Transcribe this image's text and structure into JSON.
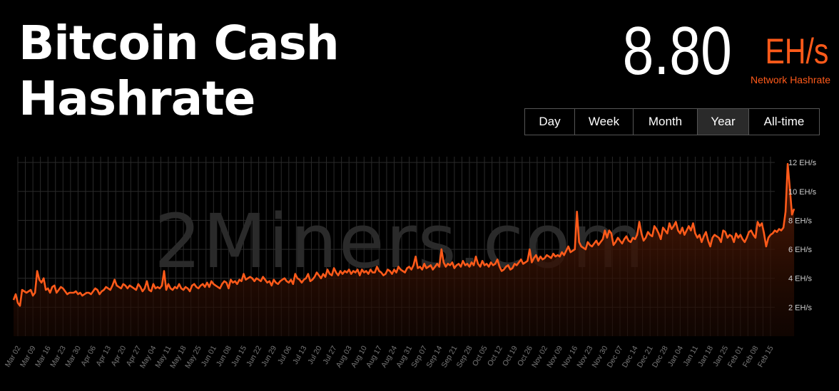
{
  "header": {
    "title_line1": "Bitcoin Cash",
    "title_line2": "Hashrate"
  },
  "stat": {
    "value": "8.80",
    "unit": "EH/s",
    "caption": "Network Hashrate"
  },
  "ranges": [
    {
      "label": "Day",
      "active": false
    },
    {
      "label": "Week",
      "active": false
    },
    {
      "label": "Month",
      "active": false
    },
    {
      "label": "Year",
      "active": true
    },
    {
      "label": "All-time",
      "active": false
    }
  ],
  "watermark": "2Miners.com",
  "colors": {
    "accent": "#ff5a1a",
    "grid": "#2a2a2a",
    "axis_text": "#777777"
  },
  "chart_data": {
    "type": "area",
    "series": [
      {
        "name": "Network Hashrate",
        "unit": "EH/s"
      }
    ],
    "ylim": [
      0,
      12.4
    ],
    "yticks": [
      2,
      4,
      6,
      8,
      10,
      12
    ],
    "ytick_labels": [
      "2 EH/s",
      "4 EH/s",
      "6 EH/s",
      "8 EH/s",
      "10 EH/s",
      "12 EH/s"
    ],
    "xtick_labels": [
      "Mar 02",
      "Mar 09",
      "Mar 16",
      "Mar 23",
      "Mar 30",
      "Apr 06",
      "Apr 13",
      "Apr 20",
      "Apr 27",
      "May 04",
      "May 11",
      "May 18",
      "May 25",
      "Jun 01",
      "Jun 08",
      "Jun 15",
      "Jun 22",
      "Jun 29",
      "Jul 06",
      "Jul 13",
      "Jul 20",
      "Jul 27",
      "Aug 03",
      "Aug 10",
      "Aug 17",
      "Aug 24",
      "Aug 31",
      "Sep 07",
      "Sep 14",
      "Sep 21",
      "Sep 28",
      "Oct 05",
      "Oct 12",
      "Oct 19",
      "Oct 26",
      "Nov 02",
      "Nov 09",
      "Nov 16",
      "Nov 23",
      "Nov 30",
      "Dec 07",
      "Dec 14",
      "Dec 21",
      "Dec 28",
      "Jan 04",
      "Jan 11",
      "Jan 18",
      "Jan 25",
      "Feb 01",
      "Feb 08",
      "Feb 15"
    ],
    "x_days": [
      -2,
      -1,
      0,
      1,
      2,
      3,
      4,
      5,
      6,
      7,
      8,
      9,
      10,
      11,
      12,
      13,
      14,
      15,
      16,
      17,
      18,
      19,
      20,
      21,
      22,
      23,
      24,
      25,
      26,
      27,
      28,
      29,
      30,
      31,
      32,
      33,
      34,
      35,
      36,
      37,
      38,
      39,
      40,
      41,
      42,
      43,
      44,
      45,
      46,
      47,
      48,
      49,
      50,
      51,
      52,
      53,
      54,
      55,
      56,
      57,
      58,
      59,
      60,
      61,
      62,
      63,
      64,
      65,
      66,
      67,
      68,
      69,
      70,
      71,
      72,
      73,
      74,
      75,
      76,
      77,
      78,
      79,
      80,
      81,
      82,
      83,
      84,
      85,
      86,
      87,
      88,
      89,
      90,
      91,
      92,
      93,
      94,
      95,
      96,
      97,
      98,
      99,
      100,
      101,
      102,
      103,
      104,
      105,
      106,
      107,
      108,
      109,
      110,
      111,
      112,
      113,
      114,
      115,
      116,
      117,
      118,
      119,
      120,
      121,
      122,
      123,
      124,
      125,
      126,
      127,
      128,
      129,
      130,
      131,
      132,
      133,
      134,
      135,
      136,
      137,
      138,
      139,
      140,
      141,
      142,
      143,
      144,
      145,
      146,
      147,
      148,
      149,
      150,
      151,
      152,
      153,
      154,
      155,
      156,
      157,
      158,
      159,
      160,
      161,
      162,
      163,
      164,
      165,
      166,
      167,
      168,
      169,
      170,
      171,
      172,
      173,
      174,
      175,
      176,
      177,
      178,
      179,
      180,
      181,
      182,
      183,
      184,
      185,
      186,
      187,
      188,
      189,
      190,
      191,
      192,
      193,
      194,
      195,
      196,
      197,
      198,
      199,
      200,
      201,
      202,
      203,
      204,
      205,
      206,
      207,
      208,
      209,
      210,
      211,
      212,
      213,
      214,
      215,
      216,
      217,
      218,
      219,
      220,
      221,
      222,
      223,
      224,
      225,
      226,
      227,
      228,
      229,
      230,
      231,
      232,
      233,
      234,
      235,
      236,
      237,
      238,
      239,
      240,
      241,
      242,
      243,
      244,
      245,
      246,
      247,
      248,
      249,
      250,
      251,
      252,
      253,
      254,
      255,
      256,
      257,
      258,
      259,
      260,
      261,
      262,
      263,
      264,
      265,
      266,
      267,
      268,
      269,
      270,
      271,
      272,
      273,
      274,
      275,
      276,
      277,
      278,
      279,
      280,
      281,
      282,
      283,
      284,
      285,
      286,
      287,
      288,
      289,
      290,
      291,
      292,
      293,
      294,
      295,
      296,
      297,
      298,
      299,
      300,
      301,
      302,
      303,
      304,
      305,
      306,
      307,
      308,
      309,
      310,
      311,
      312,
      313,
      314,
      315,
      316,
      317,
      318,
      319,
      320,
      321,
      322,
      323,
      324,
      325,
      326,
      327,
      328,
      329,
      330,
      331,
      332,
      333,
      334,
      335,
      336,
      337,
      338,
      339,
      340,
      341,
      342,
      343,
      344,
      345,
      346,
      347,
      348,
      349,
      350,
      351,
      352,
      353,
      354,
      355,
      356,
      357,
      358,
      359,
      360,
      361
    ],
    "values": [
      2.5,
      2.9,
      2.3,
      2.1,
      3.2,
      3.1,
      3.0,
      3.1,
      3.2,
      2.8,
      3.0,
      4.5,
      3.9,
      3.7,
      4.0,
      3.2,
      3.3,
      3.0,
      3.4,
      3.5,
      3.0,
      3.2,
      3.4,
      3.3,
      3.1,
      2.9,
      3.0,
      3.0,
      3.0,
      3.1,
      2.9,
      3.0,
      2.8,
      2.9,
      3.0,
      3.0,
      2.9,
      3.1,
      3.3,
      3.2,
      2.9,
      3.1,
      3.2,
      3.4,
      3.3,
      3.2,
      3.5,
      3.9,
      3.5,
      3.4,
      3.3,
      3.6,
      3.5,
      3.3,
      3.5,
      3.4,
      3.3,
      3.2,
      3.6,
      3.4,
      3.1,
      3.3,
      3.8,
      3.2,
      3.1,
      3.6,
      3.3,
      3.4,
      3.3,
      3.5,
      4.5,
      3.2,
      3.6,
      3.3,
      3.2,
      3.4,
      3.3,
      3.6,
      3.3,
      3.2,
      3.4,
      3.3,
      3.1,
      3.5,
      3.6,
      3.4,
      3.3,
      3.5,
      3.6,
      3.4,
      3.7,
      3.4,
      3.8,
      3.6,
      3.5,
      3.4,
      3.3,
      3.6,
      3.8,
      3.7,
      3.3,
      3.9,
      3.7,
      3.8,
      3.6,
      3.9,
      3.8,
      4.3,
      3.9,
      4.0,
      4.1,
      4.0,
      3.8,
      4.0,
      3.9,
      3.8,
      4.1,
      3.9,
      3.7,
      3.8,
      3.5,
      3.9,
      3.7,
      3.6,
      3.8,
      3.9,
      4.0,
      3.8,
      3.7,
      3.9,
      3.6,
      4.3,
      4.0,
      3.9,
      3.7,
      3.9,
      4.0,
      4.3,
      3.8,
      3.9,
      4.1,
      4.4,
      4.2,
      4.0,
      4.3,
      4.1,
      4.6,
      4.3,
      4.2,
      4.7,
      4.4,
      4.2,
      4.5,
      4.3,
      4.5,
      4.4,
      4.6,
      4.3,
      4.5,
      4.4,
      4.6,
      4.2,
      4.6,
      4.4,
      4.5,
      4.3,
      4.6,
      4.4,
      4.4,
      4.8,
      4.5,
      4.4,
      4.2,
      4.3,
      4.6,
      4.5,
      4.3,
      4.6,
      4.4,
      4.8,
      4.6,
      4.5,
      4.4,
      4.7,
      4.8,
      4.6,
      4.9,
      5.5,
      4.7,
      4.8,
      4.6,
      5.0,
      4.7,
      4.8,
      4.9,
      4.6,
      4.8,
      5.0,
      4.8,
      6.0,
      5.1,
      4.8,
      5.0,
      4.9,
      5.1,
      4.7,
      4.9,
      5.0,
      4.8,
      5.2,
      4.9,
      5.0,
      4.8,
      5.1,
      4.9,
      5.5,
      5.0,
      4.8,
      5.2,
      4.9,
      5.0,
      4.8,
      5.1,
      4.9,
      5.0,
      5.3,
      4.8,
      4.5,
      4.6,
      4.8,
      4.9,
      4.6,
      4.7,
      5.0,
      4.9,
      5.1,
      5.3,
      5.0,
      5.1,
      5.2,
      6.0,
      5.1,
      5.4,
      5.6,
      5.2,
      5.5,
      5.3,
      5.4,
      5.6,
      5.5,
      5.4,
      5.7,
      5.5,
      5.6,
      5.5,
      5.8,
      5.6,
      5.9,
      6.2,
      5.8,
      5.9,
      6.0,
      8.6,
      6.5,
      6.2,
      6.1,
      6.0,
      6.5,
      6.3,
      6.2,
      6.4,
      6.6,
      6.3,
      6.5,
      6.7,
      7.3,
      6.8,
      7.3,
      7.1,
      6.3,
      6.5,
      6.8,
      6.6,
      6.4,
      6.7,
      6.9,
      6.6,
      6.5,
      6.8,
      6.7,
      7.0,
      7.9,
      7.1,
      6.6,
      6.8,
      7.2,
      7.0,
      6.9,
      7.6,
      7.4,
      7.1,
      6.7,
      7.5,
      7.3,
      7.1,
      7.8,
      7.4,
      7.6,
      7.9,
      7.3,
      7.1,
      7.5,
      7.0,
      7.3,
      7.6,
      7.3,
      7.8,
      7.1,
      6.8,
      7.0,
      6.5,
      6.9,
      7.2,
      6.6,
      6.2,
      6.8,
      7.0,
      6.9,
      6.8,
      6.5,
      7.3,
      7.2,
      6.8,
      7.0,
      6.9,
      6.5,
      7.1,
      6.8,
      7.0,
      6.7,
      6.5,
      6.8,
      7.2,
      7.3,
      7.0,
      6.8,
      7.9,
      7.6,
      7.8,
      7.1,
      6.2,
      6.8,
      7.0,
      7.1,
      7.3,
      7.2,
      7.4,
      7.3,
      7.5,
      8.6,
      11.9,
      10.2,
      8.4,
      8.8
    ]
  }
}
